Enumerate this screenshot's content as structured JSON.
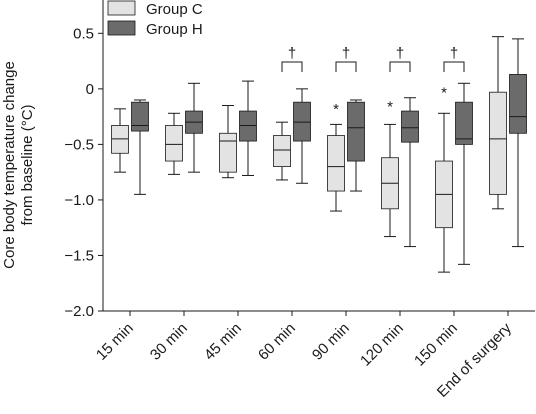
{
  "chart_data": {
    "type": "boxplot",
    "ylabel_lines": [
      "Core body temperature change",
      "from baseline (°C)"
    ],
    "ylim": [
      -2.0,
      0.8
    ],
    "yticks": [
      "0.5",
      "0",
      "−0.5",
      "−1.0",
      "−1.5",
      "−2.0"
    ],
    "ytick_values": [
      0.5,
      0,
      -0.5,
      -1.0,
      -1.5,
      -2.0
    ],
    "categories": [
      "15 min",
      "30 min",
      "45 min",
      "60 min",
      "90 min",
      "120 min",
      "150 min",
      "End of surgery"
    ],
    "legend_position": "top-left",
    "series": [
      {
        "name": "Group C",
        "color": "#e3e3e3",
        "boxes": [
          {
            "min": -0.75,
            "q1": -0.58,
            "median": -0.45,
            "q3": -0.33,
            "max": -0.18
          },
          {
            "min": -0.77,
            "q1": -0.65,
            "median": -0.5,
            "q3": -0.33,
            "max": -0.22
          },
          {
            "min": -0.8,
            "q1": -0.75,
            "median": -0.47,
            "q3": -0.4,
            "max": -0.15
          },
          {
            "min": -0.82,
            "q1": -0.7,
            "median": -0.55,
            "q3": -0.42,
            "max": -0.3
          },
          {
            "min": -1.1,
            "q1": -0.92,
            "median": -0.7,
            "q3": -0.42,
            "max": -0.32
          },
          {
            "min": -1.33,
            "q1": -1.08,
            "median": -0.85,
            "q3": -0.62,
            "max": -0.32
          },
          {
            "min": -1.65,
            "q1": -1.25,
            "median": -0.95,
            "q3": -0.65,
            "max": -0.22
          },
          {
            "min": -1.08,
            "q1": -0.95,
            "median": -0.45,
            "q3": -0.03,
            "max": 0.47
          }
        ]
      },
      {
        "name": "Group H",
        "color": "#6b6b6b",
        "boxes": [
          {
            "min": -0.95,
            "q1": -0.38,
            "median": -0.33,
            "q3": -0.12,
            "max": -0.1
          },
          {
            "min": -0.75,
            "q1": -0.4,
            "median": -0.3,
            "q3": -0.2,
            "max": 0.05
          },
          {
            "min": -0.78,
            "q1": -0.47,
            "median": -0.33,
            "q3": -0.2,
            "max": 0.07
          },
          {
            "min": -0.85,
            "q1": -0.47,
            "median": -0.3,
            "q3": -0.12,
            "max": 0.0
          },
          {
            "min": -0.92,
            "q1": -0.65,
            "median": -0.35,
            "q3": -0.12,
            "max": -0.1
          },
          {
            "min": -1.42,
            "q1": -0.48,
            "median": -0.35,
            "q3": -0.2,
            "max": -0.08
          },
          {
            "min": -1.58,
            "q1": -0.5,
            "median": -0.45,
            "q3": -0.12,
            "max": 0.05
          },
          {
            "min": -1.42,
            "q1": -0.4,
            "median": -0.25,
            "q3": 0.13,
            "max": 0.45
          }
        ]
      }
    ],
    "annotations": {
      "dagger_symbol": "†",
      "dagger_categories": [
        "60 min",
        "90 min",
        "120 min",
        "150 min"
      ],
      "star_symbol": "*",
      "star_categories": [
        "90 min",
        "120 min",
        "150 min"
      ]
    }
  }
}
